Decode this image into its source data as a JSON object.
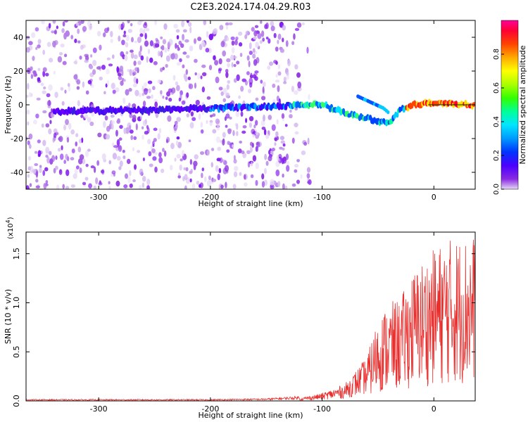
{
  "title": "C2E3.2024.174.04.29.R03",
  "chart_data": [
    {
      "type": "heatmap",
      "xlabel": "Height of straight line (km)",
      "ylabel": "Frequency (Hz)",
      "xlim": [
        -365,
        37
      ],
      "ylim": [
        -50,
        50
      ],
      "x_ticks": [
        -300,
        -200,
        -100,
        0
      ],
      "x_tick_labels": [
        "-300",
        "-200",
        "-100",
        "0"
      ],
      "y_ticks": [
        -40,
        -20,
        0,
        20,
        40
      ],
      "y_tick_labels": [
        "-40",
        "-20",
        "0",
        "20",
        "40"
      ],
      "colorbar": {
        "label": "Normalized spectral amplitude",
        "range": [
          0,
          1
        ],
        "ticks": [
          0.0,
          0.2,
          0.4,
          0.6,
          0.8
        ],
        "tick_labels": [
          "0.0",
          "0.2",
          "0.4",
          "0.6",
          "0.8"
        ],
        "colormap": "rainbow"
      },
      "ridge": {
        "description_points": [
          {
            "x": -340,
            "y": -4
          },
          {
            "x": -250,
            "y": -3
          },
          {
            "x": -200,
            "y": -2
          },
          {
            "x": -150,
            "y": -1
          },
          {
            "x": -120,
            "y": 0
          },
          {
            "x": -100,
            "y": 0
          },
          {
            "x": -80,
            "y": -5
          },
          {
            "x": -60,
            "y": -8
          },
          {
            "x": -40,
            "y": -11
          },
          {
            "x": -30,
            "y": -3
          },
          {
            "x": -20,
            "y": 0
          },
          {
            "x": 0,
            "y": 1
          },
          {
            "x": 37,
            "y": 0
          }
        ],
        "branch": [
          {
            "x": -68,
            "y": 5
          },
          {
            "x": -45,
            "y": -2
          },
          {
            "x": -40,
            "y": -5
          }
        ]
      }
    },
    {
      "type": "line",
      "xlabel": "Height of straight line (km)",
      "ylabel": "SNR (10 * v/v)",
      "yscale_label": "(x10",
      "yscale_exp": "4",
      "yscale_close": ")",
      "xlim": [
        -365,
        37
      ],
      "ylim": [
        0,
        1.72
      ],
      "x_ticks": [
        -300,
        -200,
        -100,
        0
      ],
      "x_tick_labels": [
        "-300",
        "-200",
        "-100",
        "0"
      ],
      "y_ticks": [
        0.0,
        0.5,
        1.0,
        1.5
      ],
      "y_tick_labels": [
        "0.0",
        "0.5",
        "1.0",
        "1.5"
      ],
      "color": "#e8302f",
      "series": [
        {
          "envelope": [
            {
              "x": -365,
              "y": 0.01
            },
            {
              "x": -200,
              "y": 0.01
            },
            {
              "x": -150,
              "y": 0.015
            },
            {
              "x": -120,
              "y": 0.03
            },
            {
              "x": -100,
              "y": 0.08
            },
            {
              "x": -80,
              "y": 0.17
            },
            {
              "x": -60,
              "y": 0.45
            },
            {
              "x": -50,
              "y": 0.85
            },
            {
              "x": -40,
              "y": 1.0
            },
            {
              "x": -30,
              "y": 1.05
            },
            {
              "x": -20,
              "y": 1.3
            },
            {
              "x": -10,
              "y": 1.45
            },
            {
              "x": 0,
              "y": 1.55
            },
            {
              "x": 10,
              "y": 1.65
            },
            {
              "x": 20,
              "y": 1.68
            },
            {
              "x": 37,
              "y": 1.7
            }
          ]
        }
      ]
    }
  ]
}
